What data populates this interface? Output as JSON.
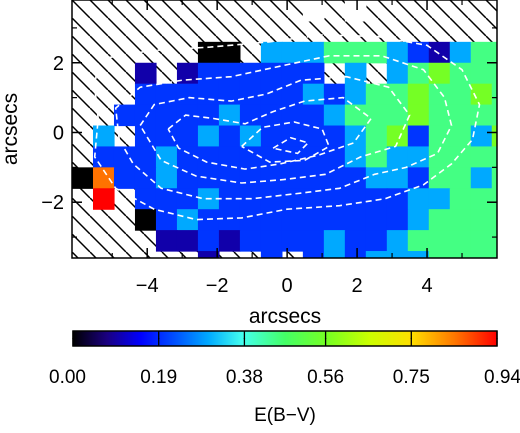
{
  "chart_data": [
    {
      "type": "heatmap",
      "title": "",
      "xlabel": "arcsecs",
      "ylabel": "arcsecs",
      "xlim": [
        -6.15,
        6.0
      ],
      "ylim": [
        -3.6,
        3.8
      ],
      "x_ticks": [
        -4,
        -2,
        0,
        2,
        4
      ],
      "x_tick_labels": [
        "−4",
        "−2",
        "0",
        "2",
        "4"
      ],
      "y_ticks": [
        -2,
        0,
        2
      ],
      "y_tick_labels": [
        "−2",
        "0",
        "2"
      ],
      "pixel_size": 0.6,
      "x_start": -6.15,
      "y_start": 3.8,
      "hatched_background": true,
      "grid": false,
      "rows": [
        "...........x.x..........................",
        ".......................x....3...........",
        "......kk.22233321h23333343.3....2.......",
        "...h.h111111.2.23433343333433333.3......",
        "...111111112123343343434443443322.......",
        "..11111211112333433333443335544322......",
        ".2.11121211112341332444444333444343......",
        ".1112111111112322333333343445449344.....",
        "k811211111111122133232343349944344......",
        ".9.11121111111112233334444334433434.....",
        "...k12111111111123333345454444344.3.....",
        "....hh1h111121123333344344544445343.....",
        "......h..1.12122233333334344446433......",
        "...k.............2.2...3.4....3.........",
        "....x.....11.6....x..9.................."
      ],
      "level_codes": {
        "k": 0.0,
        "h": 0.1,
        "1": 0.2,
        "2": 0.3,
        "3": 0.45,
        "4": 0.56,
        "5": 0.62,
        "6": 0.72,
        "8": 0.85,
        "9": 0.94,
        "x": 0.0
      },
      "contours": [
        [
          [
            -5.4,
            2.1
          ],
          [
            -3.9,
            2.35
          ],
          [
            -2.2,
            2.45
          ],
          [
            -0.5,
            2.6
          ],
          [
            1.0,
            2.8
          ],
          [
            2.6,
            2.75
          ],
          [
            4.0,
            2.5
          ],
          [
            5.0,
            1.8
          ],
          [
            5.5,
            0.8
          ],
          [
            5.3,
            -0.2
          ],
          [
            4.7,
            -0.9
          ],
          [
            3.9,
            -1.5
          ],
          [
            2.8,
            -1.9
          ],
          [
            1.5,
            -2.1
          ],
          [
            0.0,
            -2.2
          ],
          [
            -1.3,
            -2.45
          ],
          [
            -2.6,
            -2.5
          ],
          [
            -3.8,
            -2.2
          ],
          [
            -4.9,
            -1.6
          ],
          [
            -5.5,
            -0.7
          ],
          [
            -5.4,
            0.4
          ],
          [
            -5.5,
            1.3
          ],
          [
            -5.4,
            2.1
          ]
        ],
        [
          [
            -4.8,
            -0.2
          ],
          [
            -4.9,
            0.7
          ],
          [
            -4.2,
            1.3
          ],
          [
            -3.0,
            1.5
          ],
          [
            -1.6,
            1.6
          ],
          [
            -0.2,
            1.9
          ],
          [
            1.2,
            2.2
          ],
          [
            2.7,
            2.2
          ],
          [
            3.9,
            1.8
          ],
          [
            4.5,
            1.0
          ],
          [
            4.7,
            0.2
          ],
          [
            4.3,
            -0.6
          ],
          [
            3.4,
            -1.0
          ],
          [
            2.5,
            -1.2
          ],
          [
            1.5,
            -1.6
          ],
          [
            0.3,
            -1.75
          ],
          [
            -1.0,
            -1.9
          ],
          [
            -2.4,
            -1.9
          ],
          [
            -3.6,
            -1.6
          ],
          [
            -4.4,
            -0.9
          ],
          [
            -4.8,
            -0.2
          ]
        ],
        [
          [
            -4.2,
            0.2
          ],
          [
            -3.8,
            0.8
          ],
          [
            -2.8,
            1.0
          ],
          [
            -1.6,
            0.9
          ],
          [
            -0.6,
            1.1
          ],
          [
            0.4,
            1.5
          ],
          [
            1.7,
            1.6
          ],
          [
            2.9,
            1.3
          ],
          [
            3.5,
            0.5
          ],
          [
            3.1,
            -0.4
          ],
          [
            2.1,
            -0.7
          ],
          [
            1.1,
            -1.2
          ],
          [
            -0.1,
            -1.35
          ],
          [
            -1.3,
            -1.45
          ],
          [
            -2.6,
            -1.25
          ],
          [
            -3.6,
            -0.8
          ],
          [
            -4.2,
            0.2
          ]
        ],
        [
          [
            -3.4,
            0.1
          ],
          [
            -2.9,
            0.5
          ],
          [
            -2.1,
            0.4
          ],
          [
            -1.2,
            0.25
          ],
          [
            -0.4,
            0.6
          ],
          [
            0.5,
            0.9
          ],
          [
            1.6,
            1.0
          ],
          [
            2.4,
            0.4
          ],
          [
            1.9,
            -0.3
          ],
          [
            0.9,
            -0.65
          ],
          [
            -0.2,
            -0.9
          ],
          [
            -1.2,
            -1.05
          ],
          [
            -2.3,
            -0.85
          ],
          [
            -3.1,
            -0.45
          ],
          [
            -3.4,
            0.1
          ]
        ],
        [
          [
            -1.3,
            -0.4
          ],
          [
            -0.7,
            0.15
          ],
          [
            0.2,
            0.3
          ],
          [
            1.0,
            0.1
          ],
          [
            1.2,
            -0.4
          ],
          [
            0.5,
            -0.8
          ],
          [
            -0.5,
            -0.85
          ],
          [
            -1.3,
            -0.4
          ]
        ],
        [
          [
            -0.4,
            -0.45
          ],
          [
            0.1,
            -0.15
          ],
          [
            0.6,
            -0.3
          ],
          [
            0.3,
            -0.6
          ],
          [
            -0.4,
            -0.45
          ]
        ]
      ],
      "colorbar": {
        "label": "E(B−V)",
        "min": 0.0,
        "max": 0.94,
        "tick_labels": [
          "0.00",
          "0.19",
          "0.38",
          "0.56",
          "0.75",
          "0.94"
        ],
        "tick_values": [
          0.0,
          0.19,
          0.38,
          0.56,
          0.75,
          0.94
        ]
      }
    }
  ]
}
